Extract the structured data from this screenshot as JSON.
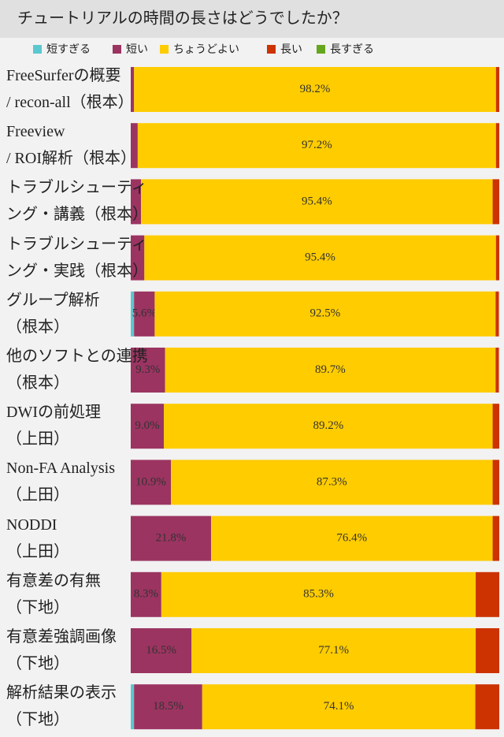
{
  "chart_data": {
    "type": "stacked-bar-horizontal",
    "title": "チュートリアルの時間の長さはどうでしたか？",
    "categories": [
      "FreeSurferの概要\n/ recon-all（根本）",
      "Freeview\n/ ROI解析（根本）",
      "トラブルシューティ\nング・講義（根本）",
      "トラブルシューティ\nング・実践（根本）",
      "グループ解析\n（根本）",
      "他のソフトとの連携\n（根本）",
      "DWIの前処理\n（上田）",
      "Non-FA Analysis\n（上田）",
      "NODDI\n（上田）",
      "有意差の有無\n（下地）",
      "有意差強調画像\n（下地）",
      "解析結果の表示\n（下地）"
    ],
    "xlim": [
      0,
      100
    ],
    "series": [
      {
        "name": "短すぎる",
        "color": "#5bc8d0",
        "values": [
          0,
          0,
          0,
          0,
          0.9,
          0,
          0,
          0,
          0,
          0,
          0,
          0.9
        ],
        "value_labels": [
          null,
          null,
          null,
          null,
          null,
          null,
          null,
          null,
          null,
          null,
          null,
          null
        ]
      },
      {
        "name": "短い",
        "color": "#9b3461",
        "values": [
          0.9,
          1.9,
          2.8,
          3.7,
          5.6,
          9.3,
          9.0,
          10.9,
          21.8,
          8.3,
          16.5,
          18.5
        ],
        "value_labels": [
          null,
          null,
          null,
          null,
          "5.6%",
          "9.3%",
          "9.0%",
          "10.9%",
          "21.8%",
          "8.3%",
          "16.5%",
          "18.5%"
        ]
      },
      {
        "name": "ちょうどよい",
        "color": "#ffcc00",
        "values": [
          98.2,
          97.2,
          95.4,
          95.4,
          92.5,
          89.7,
          89.2,
          87.3,
          76.4,
          85.3,
          77.1,
          74.1
        ],
        "value_labels": [
          "98.2%",
          "97.2%",
          "95.4%",
          "95.4%",
          "92.5%",
          "89.7%",
          "89.2%",
          "87.3%",
          "76.4%",
          "85.3%",
          "77.1%",
          "74.1%"
        ]
      },
      {
        "name": "長い",
        "color": "#cc3300",
        "values": [
          0.9,
          0.9,
          1.8,
          0.9,
          0.9,
          0.9,
          1.8,
          1.8,
          1.8,
          6.4,
          6.4,
          6.5
        ],
        "value_labels": [
          null,
          null,
          null,
          null,
          null,
          null,
          null,
          null,
          null,
          null,
          null,
          null
        ]
      },
      {
        "name": "長すぎる",
        "color": "#66a61e",
        "values": [
          0,
          0,
          0,
          0,
          0,
          0,
          0,
          0,
          0,
          0,
          0,
          0
        ],
        "value_labels": [
          null,
          null,
          null,
          null,
          null,
          null,
          null,
          null,
          null,
          null,
          null,
          null
        ]
      }
    ]
  }
}
